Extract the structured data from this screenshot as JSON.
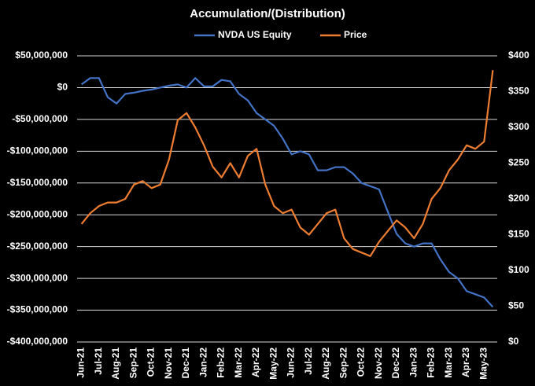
{
  "chart_data": {
    "type": "line",
    "title": "Accumulation/(Distribution)",
    "legend": "top",
    "grid": true,
    "categories": [
      "Jun-21",
      null,
      "Jul-21",
      null,
      "Aug-21",
      null,
      "Sep-21",
      null,
      "Oct-21",
      null,
      "Nov-21",
      null,
      "Dec-21",
      null,
      "Jan-22",
      null,
      "Feb-22",
      null,
      "Mar-22",
      null,
      "Apr-22",
      null,
      "May-22",
      null,
      "Jun-22",
      null,
      "Jul-22",
      null,
      "Aug-22",
      null,
      "Sep-22",
      null,
      "Oct-22",
      null,
      "Nov-22",
      null,
      "Dec-22",
      null,
      "Jan-23",
      null,
      "Feb-23",
      null,
      "Mar-23",
      null,
      "Apr-23",
      null,
      "May-23",
      null
    ],
    "series": [
      {
        "name": "NVDA US Equity",
        "color": "#4472c4",
        "axis": "y",
        "values": [
          5000000,
          15000000,
          15000000,
          -15000000,
          -25000000,
          -10000000,
          -8000000,
          -5000000,
          -3000000,
          0,
          3000000,
          5000000,
          0,
          15000000,
          2000000,
          2000000,
          12000000,
          10000000,
          -10000000,
          -20000000,
          -40000000,
          -50000000,
          -60000000,
          -80000000,
          -105000000,
          -100000000,
          -105000000,
          -130000000,
          -130000000,
          -125000000,
          -125000000,
          -135000000,
          -150000000,
          -155000000,
          -160000000,
          -195000000,
          -230000000,
          -245000000,
          -250000000,
          -245000000,
          -245000000,
          -270000000,
          -290000000,
          -300000000,
          -320000000,
          -325000000,
          -330000000,
          -345000000
        ]
      },
      {
        "name": "Price",
        "color": "#ed7d31",
        "axis": "y2",
        "values": [
          165,
          180,
          190,
          195,
          195,
          200,
          220,
          225,
          215,
          220,
          255,
          310,
          320,
          300,
          275,
          245,
          230,
          250,
          230,
          260,
          270,
          220,
          190,
          180,
          185,
          160,
          150,
          165,
          180,
          185,
          145,
          130,
          125,
          120,
          140,
          155,
          170,
          160,
          145,
          165,
          200,
          215,
          240,
          255,
          275,
          270,
          280,
          380
        ]
      }
    ],
    "ylim": [
      -400000000,
      50000000
    ],
    "yticks": [
      {
        "value": 50000000,
        "label": "$50,000,000"
      },
      {
        "value": 0,
        "label": "$0"
      },
      {
        "value": -50000000,
        "label": "-$50,000,000"
      },
      {
        "value": -100000000,
        "label": "-$100,000,000"
      },
      {
        "value": -150000000,
        "label": "-$150,000,000"
      },
      {
        "value": -200000000,
        "label": "-$200,000,000"
      },
      {
        "value": -250000000,
        "label": "-$250,000,000"
      },
      {
        "value": -300000000,
        "label": "-$300,000,000"
      },
      {
        "value": -350000000,
        "label": "-$350,000,000"
      },
      {
        "value": -400000000,
        "label": "-$400,000,000"
      }
    ],
    "y2lim": [
      0,
      400
    ],
    "y2ticks": [
      {
        "value": 400,
        "label": "$400"
      },
      {
        "value": 350,
        "label": "$350"
      },
      {
        "value": 300,
        "label": "$300"
      },
      {
        "value": 250,
        "label": "$250"
      },
      {
        "value": 200,
        "label": "$200"
      },
      {
        "value": 150,
        "label": "$150"
      },
      {
        "value": 100,
        "label": "$100"
      },
      {
        "value": 50,
        "label": "$50"
      },
      {
        "value": 0,
        "label": "$0"
      }
    ]
  }
}
